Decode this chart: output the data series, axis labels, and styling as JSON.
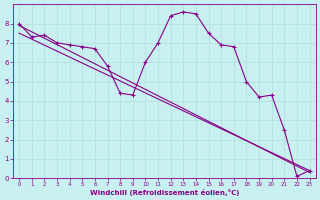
{
  "xlabel": "Windchill (Refroidissement éolien,°C)",
  "bg_color": "#c8f0f0",
  "grid_color": "#b0dede",
  "line_color": "#880088",
  "xlim": [
    -0.5,
    23.5
  ],
  "ylim": [
    0,
    9
  ],
  "xticks": [
    0,
    1,
    2,
    3,
    4,
    5,
    6,
    7,
    8,
    9,
    10,
    11,
    12,
    13,
    14,
    15,
    16,
    17,
    18,
    19,
    20,
    21,
    22,
    23
  ],
  "yticks": [
    0,
    1,
    2,
    3,
    4,
    5,
    6,
    7,
    8
  ],
  "series1_x": [
    0,
    1,
    2,
    3,
    4,
    5,
    6,
    7,
    8,
    9,
    10,
    11,
    12,
    13,
    14,
    15,
    16,
    17,
    18,
    19,
    20,
    21,
    22,
    23
  ],
  "series1_y": [
    8.0,
    7.3,
    7.4,
    7.0,
    6.9,
    6.8,
    6.7,
    5.8,
    4.4,
    4.3,
    6.0,
    7.0,
    8.4,
    8.6,
    8.5,
    7.5,
    6.9,
    6.8,
    5.0,
    4.2,
    4.3,
    2.5,
    0.1,
    0.4
  ],
  "trend1_x": [
    0,
    23
  ],
  "trend1_y": [
    7.9,
    0.3
  ],
  "trend2_x": [
    0,
    23
  ],
  "trend2_y": [
    7.5,
    0.4
  ]
}
